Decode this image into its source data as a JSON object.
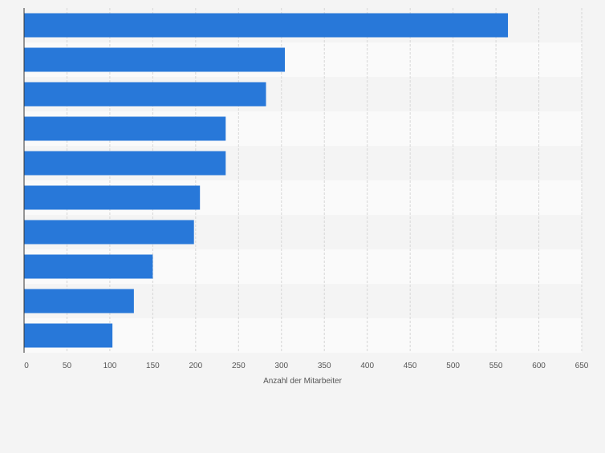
{
  "chart_data": {
    "type": "bar",
    "orientation": "horizontal",
    "title": "",
    "xlabel": "Anzahl der Mitarbeiter",
    "ylabel": "",
    "xlim": [
      0,
      650
    ],
    "xticks": [
      0,
      50,
      100,
      150,
      200,
      250,
      300,
      350,
      400,
      450,
      500,
      550,
      600,
      650
    ],
    "values": [
      564,
      304,
      282,
      235,
      235,
      205,
      198,
      150,
      128,
      103
    ],
    "bar_color": "#2878d9",
    "grid": true,
    "legend": "none"
  }
}
